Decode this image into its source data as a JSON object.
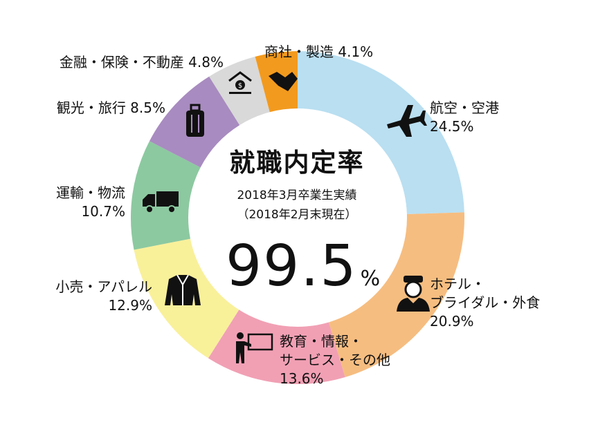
{
  "chart_data": {
    "type": "donut",
    "title": "就職内定率",
    "subtitle_line1": "2018年3月卒業生実績",
    "subtitle_line2": "（2018年2月末現在）",
    "total_value": "99.5",
    "total_unit": "%",
    "slices": [
      {
        "name": "航空・空港",
        "value": 24.5,
        "value_label": "24.5%",
        "color": "#b9dff1",
        "icon": "airplane-icon"
      },
      {
        "name": "ホテル・ブライダル・外食",
        "value": 20.9,
        "value_label": "20.9%",
        "color": "#f6bd80",
        "icon": "hotel-staff-icon"
      },
      {
        "name": "教育・情報・サービス・その他",
        "value": 13.6,
        "value_label": "13.6%",
        "color": "#f1a0b4",
        "icon": "teacher-board-icon"
      },
      {
        "name": "小売・アパレル",
        "value": 12.9,
        "value_label": "12.9%",
        "color": "#f9f09a",
        "icon": "jacket-icon"
      },
      {
        "name": "運輸・物流",
        "value": 10.7,
        "value_label": "10.7%",
        "color": "#8cc9a0",
        "icon": "truck-icon"
      },
      {
        "name": "観光・旅行",
        "value": 8.5,
        "value_label": "8.5%",
        "color": "#a88bc0",
        "icon": "suitcase-icon"
      },
      {
        "name": "金融・保険・不動産",
        "value": 4.8,
        "value_label": "4.8%",
        "color": "#d9d9d9",
        "icon": "bank-icon"
      },
      {
        "name": "商社・製造",
        "value": 4.1,
        "value_label": "4.1%",
        "color": "#f29a1e",
        "icon": "handshake-icon"
      }
    ]
  },
  "labels": {
    "s0_line1": "航空・空港",
    "s0_line2": "24.5%",
    "s1_line1": "ホテル・",
    "s1_line2": "ブライダル・外食",
    "s1_line3": "20.9%",
    "s2_line1": "教育・情報・",
    "s2_line2": "サービス・その他",
    "s2_line3": "13.6%",
    "s3_line1": "小売・アパレル",
    "s3_line2": "12.9%",
    "s4_line1": "運輸・物流",
    "s4_line2": "10.7%",
    "s5_line1": "観光・旅行 8.5%",
    "s6_line1": "金融・保険・不動産 4.8%",
    "s7_line1": "商社・製造 4.1%"
  }
}
